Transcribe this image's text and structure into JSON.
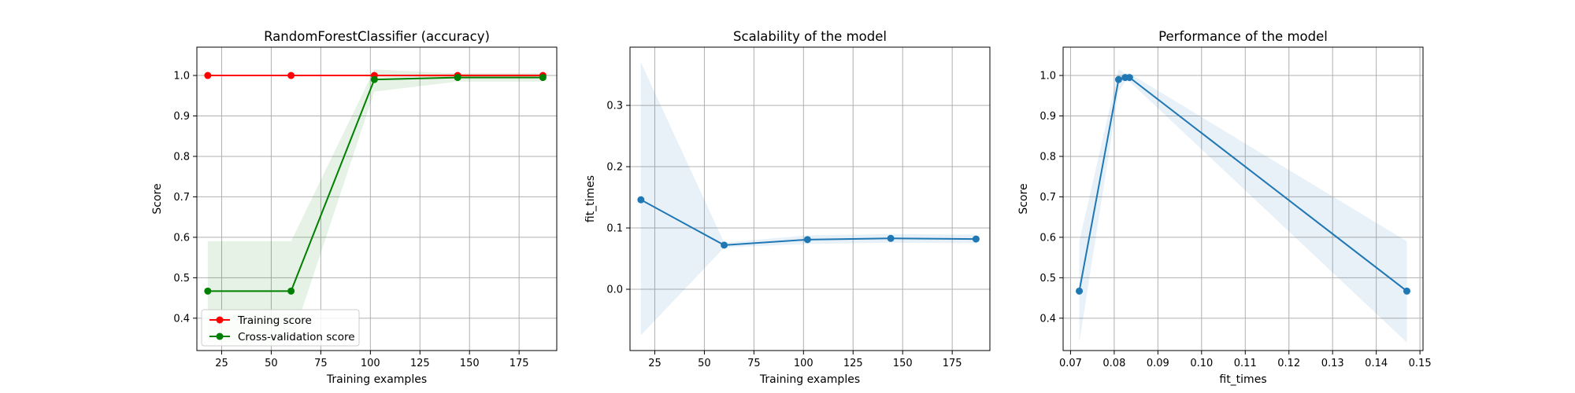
{
  "chart_data": [
    {
      "type": "line",
      "title": "RandomForestClassifier (accuracy)",
      "xlabel": "Training examples",
      "ylabel": "Score",
      "xlim": [
        12.5,
        194
      ],
      "ylim": [
        0.32,
        1.07
      ],
      "x_ticks": [
        25,
        50,
        75,
        100,
        125,
        150,
        175
      ],
      "y_ticks": [
        0.4,
        0.5,
        0.6,
        0.7,
        0.8,
        0.9,
        1.0
      ],
      "x_tick_labels": [
        "25",
        "50",
        "75",
        "100",
        "125",
        "150",
        "175"
      ],
      "y_tick_labels": [
        "0.4",
        "0.5",
        "0.6",
        "0.7",
        "0.8",
        "0.9",
        "1.0"
      ],
      "grid": true,
      "legend": {
        "placement": "lower-left",
        "entries": [
          "Training score",
          "Cross-validation score"
        ]
      },
      "x": [
        18,
        60,
        102,
        144,
        187
      ],
      "series": [
        {
          "name": "Training score",
          "color": "#ff0000",
          "values": [
            1.0,
            1.0,
            1.0,
            1.0,
            1.0
          ],
          "band_low": [
            1.0,
            1.0,
            1.0,
            0.995,
            0.995
          ],
          "band_high": [
            1.0,
            1.0,
            1.0,
            1.005,
            1.005
          ]
        },
        {
          "name": "Cross-validation score",
          "color": "#008000",
          "values": [
            0.467,
            0.467,
            0.99,
            0.995,
            0.995
          ],
          "band_low": [
            0.34,
            0.34,
            0.96,
            0.985,
            0.985
          ],
          "band_high": [
            0.59,
            0.59,
            1.015,
            1.005,
            1.005
          ]
        }
      ]
    },
    {
      "type": "line",
      "title": "Scalability of the model",
      "xlabel": "Training examples",
      "ylabel": "fit_times",
      "xlim": [
        12.5,
        194
      ],
      "ylim": [
        -0.1,
        0.395
      ],
      "x_ticks": [
        25,
        50,
        75,
        100,
        125,
        150,
        175
      ],
      "y_ticks": [
        0.0,
        0.1,
        0.2,
        0.3
      ],
      "x_tick_labels": [
        "25",
        "50",
        "75",
        "100",
        "125",
        "150",
        "175"
      ],
      "y_tick_labels": [
        "0.0",
        "0.1",
        "0.2",
        "0.3"
      ],
      "grid": true,
      "x": [
        18,
        60,
        102,
        144,
        187
      ],
      "series": [
        {
          "color": "#1f77b4",
          "values": [
            0.146,
            0.072,
            0.081,
            0.083,
            0.082
          ],
          "band_low": [
            -0.075,
            0.068,
            0.074,
            0.076,
            0.075
          ],
          "band_high": [
            0.37,
            0.076,
            0.088,
            0.09,
            0.089
          ]
        }
      ]
    },
    {
      "type": "line",
      "title": "Performance of the model",
      "xlabel": "fit_times",
      "ylabel": "Score",
      "xlim": [
        0.0683,
        0.1507
      ],
      "ylim": [
        0.32,
        1.07
      ],
      "x_ticks": [
        0.07,
        0.08,
        0.09,
        0.1,
        0.11,
        0.12,
        0.13,
        0.14,
        0.15
      ],
      "y_ticks": [
        0.4,
        0.5,
        0.6,
        0.7,
        0.8,
        0.9,
        1.0
      ],
      "x_tick_labels": [
        "0.07",
        "0.08",
        "0.09",
        "0.10",
        "0.11",
        "0.12",
        "0.13",
        "0.14",
        "0.15"
      ],
      "y_tick_labels": [
        "0.4",
        "0.5",
        "0.6",
        "0.7",
        "0.8",
        "0.9",
        "1.0"
      ],
      "grid": true,
      "x": [
        0.072,
        0.081,
        0.0825,
        0.0835,
        0.147
      ],
      "series": [
        {
          "color": "#1f77b4",
          "values": [
            0.467,
            0.99,
            0.995,
            0.995,
            0.467
          ],
          "band_low": [
            0.34,
            0.96,
            0.985,
            0.985,
            0.34
          ],
          "band_high": [
            0.59,
            1.015,
            1.005,
            1.005,
            0.59
          ]
        }
      ]
    }
  ]
}
